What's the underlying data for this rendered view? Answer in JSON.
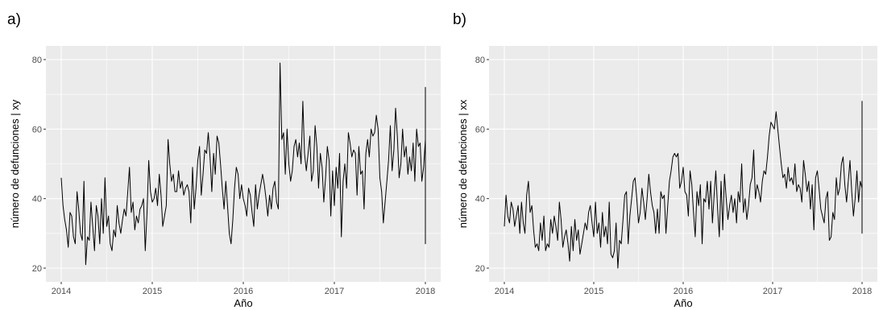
{
  "colors": {
    "panel_background": "#ebebeb",
    "gridline": "#ffffff",
    "series_line": "#000000"
  },
  "chart_data": [
    {
      "type": "line",
      "panel_label": "a)",
      "xlabel": "Año",
      "ylabel": "número de defunciones | xy",
      "xlim": [
        2014,
        2018
      ],
      "ylim": [
        20,
        80
      ],
      "x_ticks": [
        "2014",
        "2015",
        "2016",
        "2017",
        "2018"
      ],
      "y_ticks": [
        "20",
        "40",
        "60",
        "80"
      ],
      "grid": true,
      "x_start": 2014.0,
      "x_step": 0.01923,
      "values": [
        46,
        38,
        34,
        31,
        26,
        36,
        35,
        29,
        27,
        42,
        37,
        30,
        28,
        45,
        21,
        29,
        28,
        39,
        32,
        25,
        38,
        35,
        27,
        40,
        30,
        46,
        32,
        35,
        27,
        25,
        31,
        29,
        38,
        33,
        30,
        34,
        37,
        35,
        42,
        49,
        36,
        39,
        31,
        35,
        33,
        37,
        38,
        40,
        25,
        36,
        51,
        42,
        39,
        40,
        43,
        38,
        47,
        41,
        32,
        35,
        38,
        57,
        50,
        45,
        47,
        42,
        42,
        48,
        43,
        45,
        41,
        43,
        44,
        42,
        33,
        49,
        37,
        43,
        51,
        55,
        41,
        47,
        54,
        53,
        59,
        52,
        42,
        53,
        47,
        58,
        56,
        50,
        43,
        37,
        45,
        38,
        30,
        27,
        34,
        43,
        49,
        47,
        40,
        44,
        40,
        38,
        35,
        43,
        41,
        36,
        32,
        44,
        37,
        41,
        44,
        47,
        44,
        40,
        35,
        41,
        37,
        43,
        45,
        39,
        37,
        79,
        57,
        59,
        47,
        60,
        50,
        45,
        48,
        55,
        57,
        52,
        56,
        50,
        68,
        53,
        48,
        53,
        58,
        45,
        48,
        61,
        55,
        43,
        53,
        49,
        39,
        46,
        55,
        51,
        35,
        48,
        38,
        49,
        43,
        53,
        29,
        45,
        50,
        43,
        59,
        56,
        52,
        54,
        53,
        41,
        55,
        47,
        48,
        37,
        53,
        57,
        52,
        60,
        58,
        59,
        64,
        60,
        46,
        42,
        33,
        39,
        45,
        51,
        61,
        48,
        54,
        66,
        58,
        46,
        50,
        60,
        52,
        55,
        47,
        52,
        48,
        56,
        45,
        60,
        55,
        56,
        45,
        49,
        57,
        60,
        53,
        50,
        47,
        55,
        60,
        72,
        62,
        57,
        49,
        58,
        56,
        51,
        60,
        53,
        48,
        62,
        61,
        46,
        53,
        55,
        60,
        54,
        57,
        62,
        66,
        57,
        52,
        50,
        61,
        55,
        57,
        58,
        60,
        65,
        56,
        51,
        60,
        54,
        48,
        64,
        56,
        46,
        52,
        50,
        56,
        47,
        49,
        52,
        49,
        56,
        27,
        57,
        62,
        50,
        59,
        44,
        57,
        51,
        55,
        54,
        48,
        56,
        45,
        52,
        51,
        56,
        60,
        53,
        45,
        63,
        47,
        48,
        44,
        43,
        37,
        47,
        49,
        44,
        35,
        41,
        45
      ],
      "note_values": ""
    },
    {
      "type": "line",
      "panel_label": "b)",
      "xlabel": "Año",
      "ylabel": "número de defunciones | xx",
      "xlim": [
        2014,
        2018
      ],
      "ylim": [
        20,
        80
      ],
      "x_ticks": [
        "2014",
        "2015",
        "2016",
        "2017",
        "2018"
      ],
      "y_ticks": [
        "20",
        "40",
        "60",
        "80"
      ],
      "grid": true,
      "x_start": 2014.0,
      "x_step": 0.01923,
      "values": [
        32,
        41,
        35,
        33,
        39,
        37,
        32,
        35,
        38,
        30,
        39,
        33,
        30,
        41,
        45,
        36,
        38,
        31,
        26,
        27,
        25,
        33,
        28,
        35,
        25,
        27,
        26,
        34,
        30,
        35,
        32,
        28,
        39,
        34,
        26,
        29,
        31,
        27,
        22,
        32,
        25,
        34,
        28,
        31,
        24,
        27,
        30,
        33,
        31,
        36,
        38,
        33,
        29,
        39,
        30,
        33,
        26,
        36,
        29,
        32,
        27,
        39,
        24,
        23,
        25,
        33,
        20,
        28,
        27,
        34,
        41,
        42,
        27,
        35,
        40,
        45,
        46,
        40,
        33,
        36,
        43,
        39,
        34,
        40,
        47,
        42,
        38,
        36,
        30,
        37,
        30,
        42,
        40,
        41,
        30,
        38,
        45,
        48,
        52,
        53,
        52,
        53,
        43,
        45,
        49,
        42,
        41,
        35,
        48,
        44,
        36,
        29,
        42,
        38,
        44,
        27,
        40,
        39,
        45,
        37,
        45,
        33,
        41,
        48,
        37,
        29,
        45,
        31,
        47,
        40,
        34,
        38,
        41,
        36,
        40,
        33,
        42,
        39,
        50,
        36,
        40,
        34,
        38,
        44,
        46,
        54,
        40,
        44,
        42,
        39,
        45,
        48,
        47,
        52,
        58,
        62,
        61,
        60,
        65,
        60,
        55,
        50,
        46,
        47,
        43,
        49,
        45,
        46,
        44,
        50,
        42,
        44,
        43,
        39,
        51,
        47,
        42,
        45,
        37,
        44,
        31,
        46,
        48,
        43,
        37,
        35,
        33,
        40,
        42,
        28,
        29,
        36,
        34,
        46,
        41,
        43,
        50,
        52,
        44,
        39,
        45,
        51,
        42,
        35,
        40,
        48,
        39,
        45,
        43,
        42,
        50,
        52,
        42,
        40,
        47,
        44,
        51,
        49,
        45,
        41,
        44,
        40,
        50,
        48,
        45,
        43,
        52,
        48,
        47,
        52,
        51,
        58,
        60,
        55,
        49,
        62,
        60,
        65,
        55,
        64,
        68,
        60,
        49,
        55,
        68,
        62,
        51,
        58,
        41,
        57,
        45,
        46,
        44,
        49,
        51,
        46,
        34,
        42,
        48,
        45,
        52,
        55,
        49,
        40,
        44,
        47,
        43,
        38,
        41,
        48,
        36,
        42,
        40,
        44,
        39,
        37,
        30,
        38,
        34,
        45,
        48,
        43,
        40,
        37,
        52,
        45,
        51,
        52,
        43,
        40,
        36,
        33,
        32,
        38
      ]
    }
  ]
}
